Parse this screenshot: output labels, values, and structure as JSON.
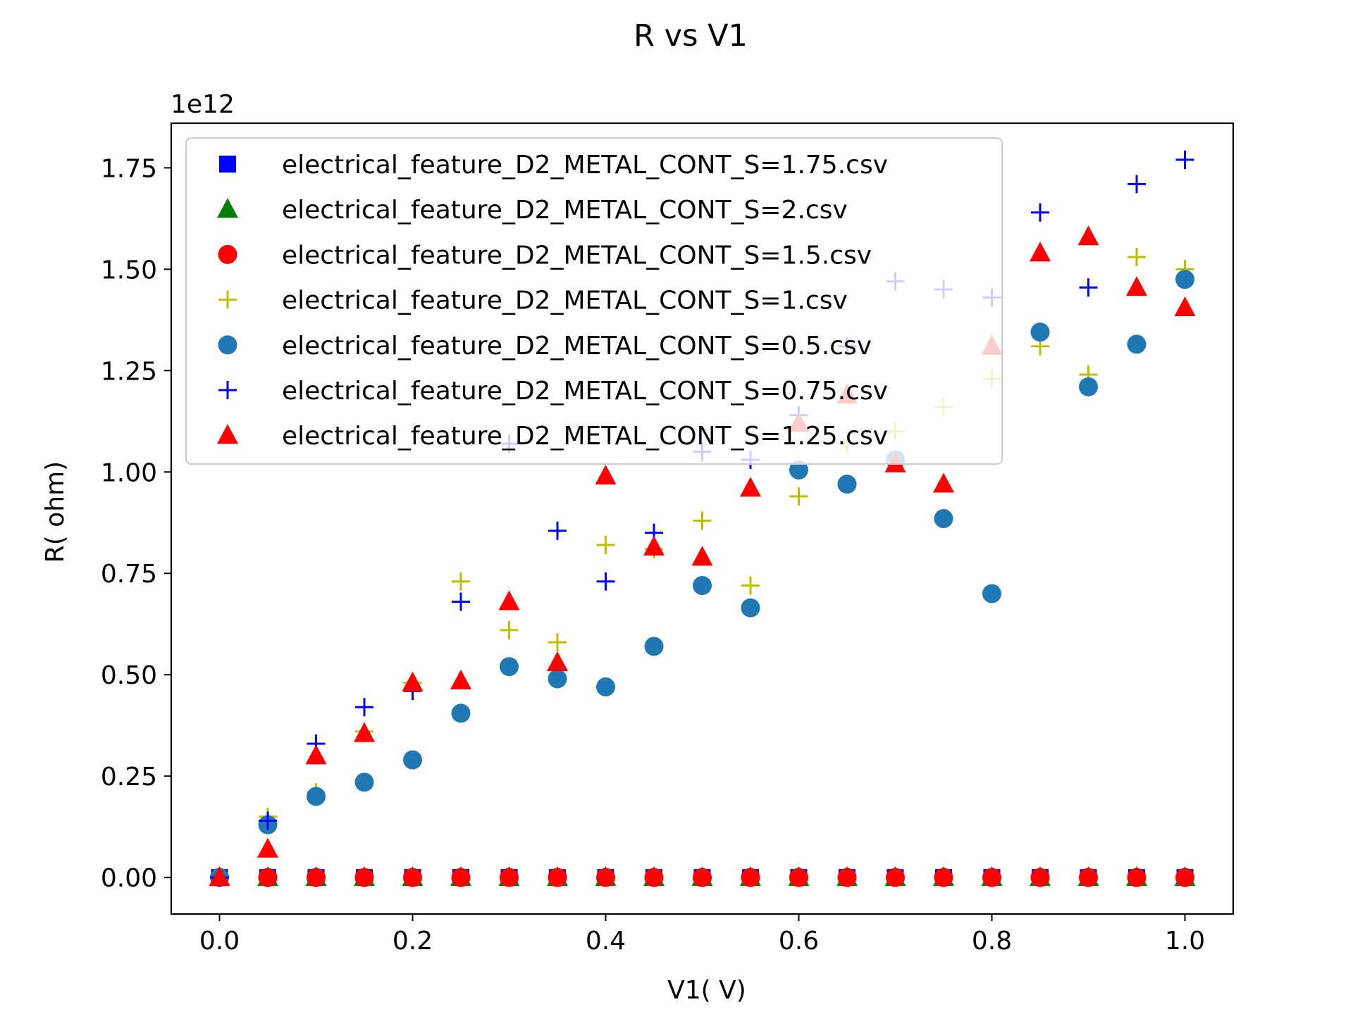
{
  "chart_data": {
    "type": "scatter",
    "title": "R vs V1",
    "xlabel": "V1( V)",
    "ylabel": "R( ohm)",
    "y_offset_label": "1e12",
    "y_scale": 1000000000000,
    "xlim": [
      -0.05,
      1.05
    ],
    "ylim": [
      -0.09,
      1.86
    ],
    "x_ticks": [
      0.0,
      0.2,
      0.4,
      0.6,
      0.8,
      1.0
    ],
    "x_tick_labels": [
      "0.0",
      "0.2",
      "0.4",
      "0.6",
      "0.8",
      "1.0"
    ],
    "y_ticks": [
      0.0,
      0.25,
      0.5,
      0.75,
      1.0,
      1.25,
      1.5,
      1.75
    ],
    "y_tick_labels": [
      "0.00",
      "0.25",
      "0.50",
      "0.75",
      "1.00",
      "1.25",
      "1.50",
      "1.75"
    ],
    "grid": false,
    "legend_position": "upper-left",
    "x": [
      0.0,
      0.05,
      0.1,
      0.15,
      0.2,
      0.25,
      0.3,
      0.35,
      0.4,
      0.45,
      0.5,
      0.55,
      0.6,
      0.65,
      0.7,
      0.75,
      0.8,
      0.85,
      0.9,
      0.95,
      1.0
    ],
    "series": [
      {
        "name": "electrical_feature_D2_METAL_CONT_S=1.75.csv",
        "marker": "square",
        "color": "#0000ff",
        "values": [
          0,
          0,
          0,
          0,
          0,
          0,
          0,
          0,
          0,
          0,
          0,
          0,
          0,
          0,
          0,
          0,
          0,
          0,
          0,
          0,
          0
        ]
      },
      {
        "name": "electrical_feature_D2_METAL_CONT_S=2.csv",
        "marker": "triangle",
        "color": "#008000",
        "values": [
          0,
          0,
          0,
          0,
          0,
          0,
          0,
          0,
          0,
          0,
          0,
          0,
          0,
          0,
          0,
          0,
          0,
          0,
          0,
          0,
          0
        ]
      },
      {
        "name": "electrical_feature_D2_METAL_CONT_S=1.5.csv",
        "marker": "circle",
        "color": "#ff0000",
        "values": [
          0,
          0,
          0,
          0,
          0,
          0,
          0,
          0,
          0,
          0,
          0,
          0,
          0,
          0,
          0,
          0,
          0,
          0,
          0,
          0,
          0
        ]
      },
      {
        "name": "electrical_feature_D2_METAL_CONT_S=1.csv",
        "marker": "plus",
        "color": "#bfbf00",
        "values": [
          0,
          0.15,
          0.21,
          0.36,
          0.48,
          0.73,
          0.61,
          0.58,
          0.82,
          0.81,
          0.88,
          0.72,
          0.94,
          1.07,
          1.1,
          1.16,
          1.23,
          1.31,
          1.24,
          1.53,
          1.5
        ]
      },
      {
        "name": "electrical_feature_D2_METAL_CONT_S=0.5.csv",
        "marker": "circle",
        "color": "#1f77b4",
        "values": [
          0,
          0.13,
          0.2,
          0.235,
          0.29,
          0.405,
          0.52,
          0.49,
          0.47,
          0.57,
          0.72,
          0.665,
          1.005,
          0.97,
          1.03,
          0.885,
          0.7,
          1.345,
          1.21,
          1.315,
          1.475
        ]
      },
      {
        "name": "electrical_feature_D2_METAL_CONT_S=0.75.csv",
        "marker": "plus",
        "color": "#0000ff",
        "values": [
          0,
          0.14,
          0.33,
          0.42,
          0.46,
          0.68,
          1.07,
          0.855,
          0.73,
          0.85,
          1.05,
          1.03,
          1.14,
          1.31,
          1.47,
          1.45,
          1.43,
          1.64,
          1.455,
          1.71,
          1.77
        ]
      },
      {
        "name": "electrical_feature_D2_METAL_CONT_S=1.25.csv",
        "marker": "triangle",
        "color": "#ff0000",
        "values": [
          0,
          0.07,
          0.3,
          0.355,
          0.48,
          0.485,
          0.68,
          0.53,
          0.99,
          0.815,
          0.79,
          0.96,
          1.12,
          1.19,
          1.02,
          0.97,
          1.31,
          1.54,
          1.58,
          1.455,
          1.405
        ]
      }
    ]
  }
}
